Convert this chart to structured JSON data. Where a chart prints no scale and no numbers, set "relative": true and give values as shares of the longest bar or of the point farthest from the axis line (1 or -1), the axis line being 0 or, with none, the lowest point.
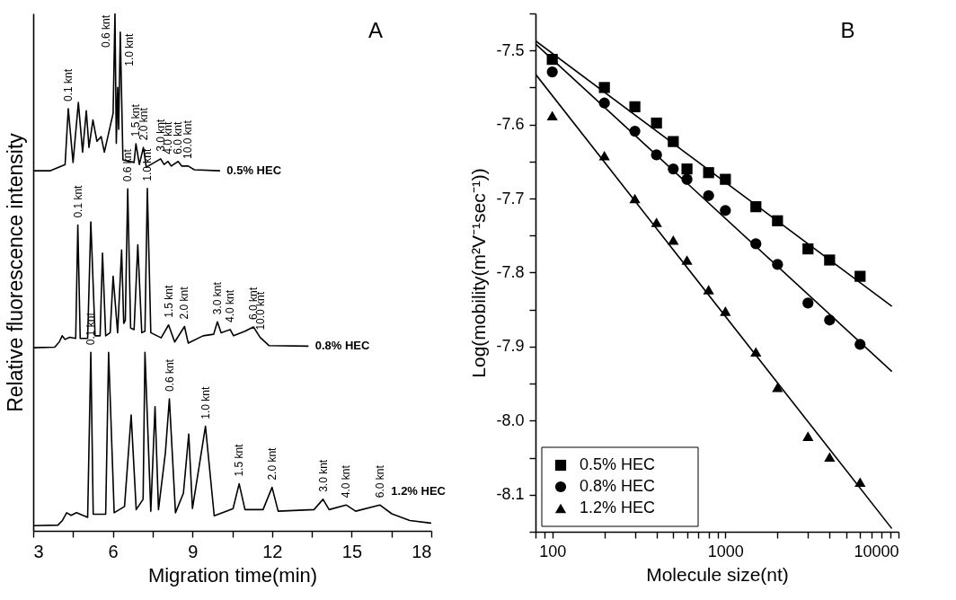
{
  "chart_data": [
    {
      "type": "line",
      "relative": true,
      "xlabel": "Migration time(min)",
      "ylabel": "Relative fluorescence intensity",
      "xlim": [
        3,
        18
      ],
      "xticks": [
        3,
        {
          "value": 4.5,
          "label": null
        },
        6,
        {
          "value": 7.5,
          "label": null
        },
        9,
        {
          "value": 10.5,
          "label": null
        },
        12,
        {
          "value": 13.5,
          "label": null
        },
        15,
        {
          "value": 16.5,
          "label": null
        },
        18
      ],
      "series": [
        {
          "name": "0.5% HEC",
          "color": "#000000",
          "x": [
            3.0,
            3.65,
            4.2,
            4.32,
            4.5,
            4.7,
            4.86,
            5.0,
            5.1,
            5.25,
            5.4,
            5.56,
            5.68,
            6.01,
            6.08,
            6.13,
            6.18,
            6.22,
            6.28,
            6.38,
            6.8,
            6.87,
            7.0,
            7.15,
            7.26,
            7.8,
            7.93,
            8.08,
            8.2,
            8.46,
            8.6,
            8.84,
            9.07,
            10.02
          ],
          "values": [
            0.696,
            0.696,
            0.708,
            0.816,
            0.712,
            0.828,
            0.732,
            0.812,
            0.741,
            0.794,
            0.753,
            0.762,
            0.732,
            0.807,
            1.0,
            0.749,
            0.857,
            0.776,
            0.964,
            0.717,
            0.712,
            0.748,
            0.708,
            0.741,
            0.703,
            0.719,
            0.708,
            0.714,
            0.705,
            0.714,
            0.705,
            0.705,
            0.698,
            0.696
          ]
        },
        {
          "name": "0.8% HEC",
          "color": "#000000",
          "x": [
            3.0,
            3.81,
            3.98,
            4.09,
            4.2,
            4.37,
            4.6,
            4.68,
            4.77,
            5.05,
            5.17,
            5.33,
            5.52,
            5.61,
            5.73,
            5.9,
            6.01,
            6.18,
            6.33,
            6.41,
            6.47,
            6.56,
            6.67,
            6.8,
            6.94,
            7.09,
            7.21,
            7.3,
            7.43,
            7.82,
            8.1,
            8.33,
            8.7,
            8.84,
            9.4,
            9.8,
            9.94,
            10.08,
            10.42,
            10.55,
            10.98,
            11.3,
            11.55,
            11.89,
            13.35
          ],
          "values": [
            0.354,
            0.355,
            0.365,
            0.377,
            0.37,
            0.374,
            0.372,
            0.591,
            0.372,
            0.372,
            0.597,
            0.377,
            0.377,
            0.537,
            0.377,
            0.383,
            0.492,
            0.383,
            0.543,
            0.401,
            0.407,
            0.661,
            0.392,
            0.389,
            0.553,
            0.383,
            0.386,
            0.662,
            0.383,
            0.373,
            0.398,
            0.365,
            0.395,
            0.363,
            0.377,
            0.38,
            0.404,
            0.383,
            0.389,
            0.377,
            0.386,
            0.394,
            0.374,
            0.358,
            0.357
          ]
        },
        {
          "name": "1.2% HEC",
          "color": "#000000",
          "x": [
            3.0,
            3.93,
            4.1,
            4.26,
            4.43,
            4.63,
            5.05,
            5.17,
            5.26,
            5.73,
            5.84,
            6.05,
            6.44,
            6.69,
            6.88,
            7.14,
            7.21,
            7.43,
            7.59,
            7.72,
            7.98,
            8.13,
            8.36,
            8.66,
            8.86,
            9.0,
            9.49,
            9.82,
            10.53,
            10.76,
            10.98,
            11.66,
            12.0,
            12.23,
            13.58,
            13.92,
            14.15,
            14.79,
            15.15,
            16.06,
            16.51,
            17.19,
            17.98
          ],
          "values": [
            0.01,
            0.011,
            0.02,
            0.035,
            0.03,
            0.035,
            0.026,
            0.345,
            0.032,
            0.032,
            0.345,
            0.035,
            0.047,
            0.224,
            0.041,
            0.061,
            0.345,
            0.038,
            0.24,
            0.041,
            0.151,
            0.255,
            0.035,
            0.073,
            0.187,
            0.043,
            0.202,
            0.029,
            0.043,
            0.091,
            0.041,
            0.041,
            0.084,
            0.038,
            0.041,
            0.061,
            0.041,
            0.05,
            0.038,
            0.05,
            0.033,
            0.02,
            0.015
          ]
        }
      ],
      "annotations": [
        "A",
        {
          "text": "0.1 knt",
          "x": 4.32,
          "y": 0.816
        },
        {
          "text": "0.6 knt",
          "x": 6.08,
          "y": 1.0
        },
        {
          "text": "1.0 knt",
          "x": 6.28,
          "y": 0.964
        },
        {
          "text": "1.5 knt",
          "x": 6.87,
          "y": 0.748
        },
        {
          "text": "2.0 knt",
          "x": 7.15,
          "y": 0.741
        },
        {
          "text": "3.0 knt",
          "x": 7.8,
          "y": 0.719
        },
        {
          "text": "4.0 knt",
          "x": 8.08,
          "y": 0.714
        },
        {
          "text": "6.0 knt",
          "x": 8.46,
          "y": 0.714
        },
        {
          "text": "10.0 knt",
          "x": 8.84,
          "y": 0.705
        },
        {
          "text": "0.1 knt",
          "x": 4.68,
          "y": 0.591
        },
        {
          "text": "0.6 knt",
          "x": 6.56,
          "y": 0.661
        },
        {
          "text": "1.0 knt",
          "x": 7.3,
          "y": 0.662
        },
        {
          "text": "1.5 knt",
          "x": 8.1,
          "y": 0.398
        },
        {
          "text": "2.0 knt",
          "x": 8.7,
          "y": 0.395
        },
        {
          "text": "3.0 knt",
          "x": 9.94,
          "y": 0.404
        },
        {
          "text": "4.0 knt",
          "x": 10.42,
          "y": 0.389
        },
        {
          "text": "6.0 knt",
          "x": 11.3,
          "y": 0.394
        },
        {
          "text": "10.0 knt",
          "x": 11.55,
          "y": 0.374
        },
        {
          "text": "0.1 knt",
          "x": 5.17,
          "y": 0.345
        },
        {
          "text": "0.6 knt",
          "x": 8.13,
          "y": 0.255
        },
        {
          "text": "1.0 knt",
          "x": 9.49,
          "y": 0.202
        },
        {
          "text": "1.5 knt",
          "x": 10.76,
          "y": 0.091
        },
        {
          "text": "2.0 knt",
          "x": 12.0,
          "y": 0.084
        },
        {
          "text": "3.0 knt",
          "x": 13.92,
          "y": 0.061
        },
        {
          "text": "4.0 knt",
          "x": 14.79,
          "y": 0.05
        },
        {
          "text": "6.0 knt",
          "x": 16.06,
          "y": 0.05
        }
      ]
    },
    {
      "type": "scatter",
      "xlabel": "Molecule size(nt)",
      "ylabel": "Log(mobility(m²V⁻¹sec⁻¹))",
      "log": "x",
      "legend": "bottom left",
      "xlim": [
        80,
        10000
      ],
      "xticks": [
        {
          "value": 80,
          "label": null
        },
        {
          "value": 90,
          "label": null
        },
        100,
        {
          "value": 200,
          "label": null
        },
        {
          "value": 300,
          "label": null
        },
        {
          "value": 400,
          "label": null
        },
        {
          "value": 500,
          "label": null
        },
        {
          "value": 600,
          "label": null
        },
        {
          "value": 700,
          "label": null
        },
        {
          "value": 800,
          "label": null
        },
        {
          "value": 900,
          "label": null
        },
        1000,
        {
          "value": 2000,
          "label": null
        },
        {
          "value": 3000,
          "label": null
        },
        {
          "value": 4000,
          "label": null
        },
        {
          "value": 5000,
          "label": null
        },
        {
          "value": 6000,
          "label": null
        },
        {
          "value": 7000,
          "label": null
        },
        {
          "value": 8000,
          "label": null
        },
        {
          "value": 9000,
          "label": null
        },
        10000
      ],
      "ylim": [
        -8.15,
        -7.45
      ],
      "yticks": [
        {
          "value": -7.45,
          "label": null
        },
        -7.5,
        {
          "value": -7.55,
          "label": null
        },
        -7.6,
        {
          "value": -7.65,
          "label": null
        },
        -7.7,
        {
          "value": -7.75,
          "label": null
        },
        -7.8,
        {
          "value": -7.85,
          "label": null
        },
        -7.9,
        {
          "value": -7.95,
          "label": null
        },
        {
          "value": -8,
          "label": "-8.0"
        },
        {
          "value": -8.05,
          "label": null
        },
        -8.1,
        {
          "value": -8.15,
          "label": null
        }
      ],
      "series": [
        {
          "name": "0.5% HEC",
          "color": "#000000",
          "marker": "square",
          "x": [
            100,
            200,
            300,
            400,
            500,
            600,
            800,
            1000,
            1500,
            2000,
            3000,
            4000,
            6000
          ],
          "values": [
            -7.512,
            -7.55,
            -7.576,
            -7.598,
            -7.623,
            -7.66,
            -7.665,
            -7.674,
            -7.711,
            -7.73,
            -7.768,
            -7.783,
            -7.805
          ]
        },
        {
          "name": "0.8% HEC",
          "color": "#000000",
          "marker": "circle",
          "x": [
            100,
            200,
            300,
            400,
            500,
            600,
            800,
            1000,
            1500,
            2000,
            3000,
            4000,
            6000
          ],
          "values": [
            -7.529,
            -7.571,
            -7.609,
            -7.641,
            -7.66,
            -7.674,
            -7.696,
            -7.716,
            -7.761,
            -7.789,
            -7.841,
            -7.864,
            -7.897
          ]
        },
        {
          "name": "1.2% HEC",
          "color": "#000000",
          "marker": "triangle",
          "x": [
            100,
            200,
            300,
            400,
            500,
            600,
            800,
            1000,
            1500,
            2000,
            3000,
            4000,
            6000
          ],
          "values": [
            -7.588,
            -7.642,
            -7.7,
            -7.732,
            -7.756,
            -7.783,
            -7.823,
            -7.852,
            -7.907,
            -7.955,
            -8.021,
            -8.049,
            -8.083
          ]
        },
        {
          "type": "line",
          "color": "#000000",
          "x": [
            80,
            9100
          ],
          "values": [
            -7.487,
            -7.845
          ]
        },
        {
          "type": "line",
          "color": "#000000",
          "x": [
            80,
            9100
          ],
          "values": [
            -7.491,
            -7.933
          ]
        },
        {
          "type": "line",
          "color": "#000000",
          "x": [
            80,
            9100
          ],
          "values": [
            -7.532,
            -8.145
          ]
        }
      ],
      "annotations": [
        "B"
      ]
    }
  ]
}
